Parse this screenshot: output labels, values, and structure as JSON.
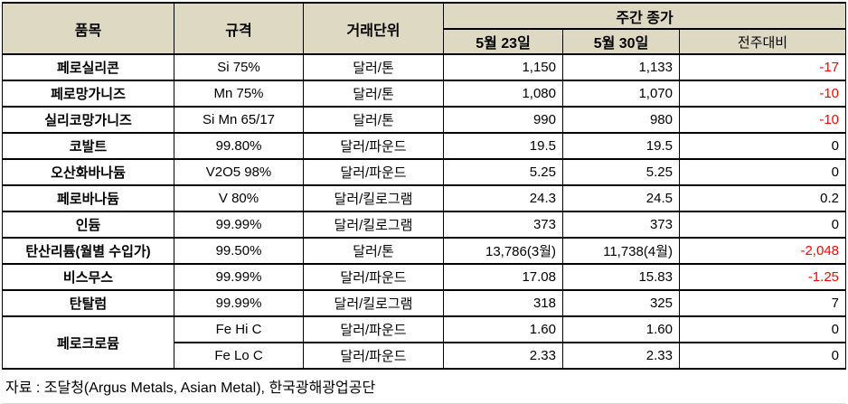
{
  "colors": {
    "header_bg": "#DDD9C3",
    "border": "#000000",
    "negative_text": "#FF0000",
    "text": "#000000"
  },
  "table": {
    "col_headers": {
      "item": "품목",
      "spec": "규격",
      "unit": "거래단위",
      "weekly_close_group": "주간 종가",
      "date1": "5월 23일",
      "date2": "5월 30일",
      "wow": "전주대비"
    },
    "rows": [
      {
        "item": "페로실리콘",
        "spec": "Si 75%",
        "unit": "달러/톤",
        "may23": "1,150",
        "may30": "1,133",
        "wow": "-17"
      },
      {
        "item": "페로망가니즈",
        "spec": "Mn 75%",
        "unit": "달러/톤",
        "may23": "1,080",
        "may30": "1,070",
        "wow": "-10"
      },
      {
        "item": "실리코망가니즈",
        "spec": "Si Mn 65/17",
        "unit": "달러/톤",
        "may23": "990",
        "may30": "980",
        "wow": "-10"
      },
      {
        "item": "코발트",
        "spec": "99.80%",
        "unit": "달러/파운드",
        "may23": "19.5",
        "may30": "19.5",
        "wow": "0"
      },
      {
        "item": "오산화바나듐",
        "spec": "V2O5 98%",
        "unit": "달러/파운드",
        "may23": "5.25",
        "may30": "5.25",
        "wow": "0"
      },
      {
        "item": "페로바나듐",
        "spec": "V 80%",
        "unit": "달러/킬로그램",
        "may23": "24.3",
        "may30": "24.5",
        "wow": "0.2"
      },
      {
        "item": "인듐",
        "spec": "99.99%",
        "unit": "달러/킬로그램",
        "may23": "373",
        "may30": "373",
        "wow": "0"
      },
      {
        "item": "탄산리튬(월별 수입가)",
        "spec": "99.50%",
        "unit": "달러/톤",
        "may23": "13,786(3월)",
        "may30": "11,738(4월)",
        "wow": "-2,048"
      },
      {
        "item": "비스무스",
        "spec": "99.99%",
        "unit": "달러/파운드",
        "may23": "17.08",
        "may30": "15.83",
        "wow": "-1.25"
      },
      {
        "item": "탄탈럼",
        "spec": "99.99%",
        "unit": "달러/킬로그램",
        "may23": "318",
        "may30": "325",
        "wow": "7"
      },
      {
        "item": "페로크로뮴",
        "item_rowspan": 2,
        "spec": "Fe Hi C",
        "unit": "달러/파운드",
        "may23": "1.60",
        "may30": "1.60",
        "wow": "0"
      },
      {
        "item": null,
        "spec": "Fe Lo C",
        "unit": "달러/파운드",
        "may23": "2.33",
        "may30": "2.33",
        "wow": "0"
      }
    ],
    "source_note": "자료 : 조달청(Argus Metals, Asian Metal), 한국광해광업공단"
  }
}
